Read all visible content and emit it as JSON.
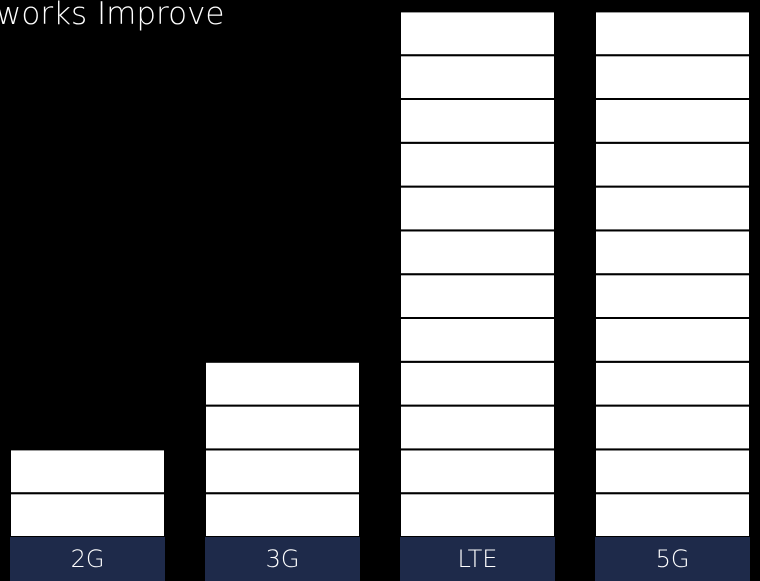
{
  "chart_data": {
    "type": "bar",
    "title": "works Improve",
    "categories": [
      "2G",
      "3G",
      "LTE",
      "5G"
    ],
    "values": [
      2,
      4,
      12,
      12
    ],
    "unit_stacked_blocks": true,
    "colors": {
      "background": "#000000",
      "block_fill": "#ffffff",
      "block_separator": "#000000",
      "label_band": "#1e2a4a",
      "text": "#ffffff"
    }
  }
}
